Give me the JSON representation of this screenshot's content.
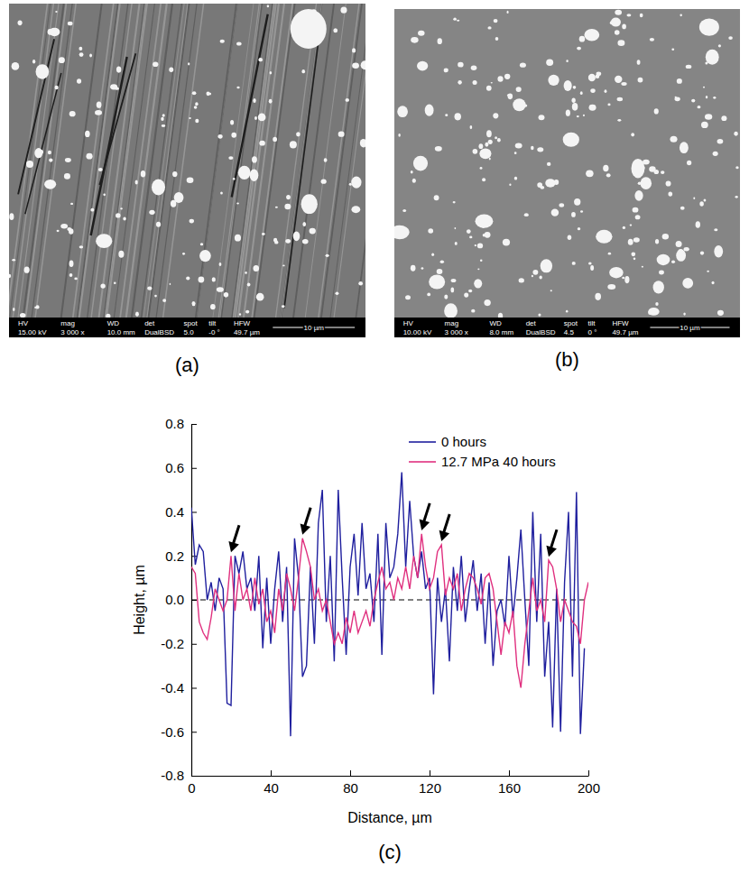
{
  "images": [
    {
      "label": "(a)",
      "info_headers": [
        "HV",
        "mag",
        "WD",
        "det",
        "spot",
        "tilt",
        "HFW"
      ],
      "info_values": [
        "15.00 kV",
        "3 000 x",
        "10.0 mm",
        "DualBSD",
        "5.0",
        "-0 °",
        "49.7 µm"
      ],
      "scale_bar": "10 µm"
    },
    {
      "label": "(b)",
      "info_headers": [
        "HV",
        "mag",
        "WD",
        "det",
        "spot",
        "tilt",
        "HFW"
      ],
      "info_values": [
        "10.00 kV",
        "3 000 x",
        "8.0 mm",
        "DualBSD",
        "4.5",
        "0 °",
        "49.7 µm"
      ],
      "scale_bar": "10 µm"
    }
  ],
  "chart_data": {
    "type": "line",
    "panel_label": "(c)",
    "x_label": "Distance, µm",
    "y_label": "Height, µm",
    "xlim": [
      0,
      200
    ],
    "xticks": [
      0,
      40,
      80,
      120,
      160,
      200
    ],
    "ylim": [
      -0.8,
      0.8
    ],
    "yticks": [
      -0.8,
      -0.6,
      -0.4,
      -0.2,
      {
        "value": 0,
        "label": "0.0"
      },
      0.2,
      0.4,
      0.6,
      0.8
    ],
    "legend": "upper right",
    "reference_line": {
      "y": 0,
      "line_style": "dashed"
    },
    "arrows": [
      {
        "x": 20,
        "y": 0.2
      },
      {
        "x": 56,
        "y": 0.28
      },
      {
        "x": 116,
        "y": 0.3
      },
      {
        "x": 126,
        "y": 0.25
      },
      {
        "x": 180,
        "y": 0.18
      }
    ],
    "series": [
      {
        "name": "0 hours",
        "color": "#1f1f9e",
        "x": [
          0,
          2,
          4,
          6,
          8,
          10,
          12,
          14,
          16,
          18,
          20,
          22,
          24,
          26,
          28,
          30,
          32,
          34,
          36,
          38,
          40,
          42,
          44,
          46,
          48,
          50,
          52,
          54,
          56,
          58,
          60,
          62,
          64,
          66,
          68,
          70,
          72,
          74,
          76,
          78,
          80,
          82,
          84,
          86,
          88,
          90,
          92,
          94,
          96,
          98,
          100,
          102,
          104,
          106,
          108,
          110,
          112,
          114,
          116,
          118,
          120,
          122,
          124,
          126,
          128,
          130,
          132,
          134,
          136,
          138,
          140,
          142,
          144,
          146,
          148,
          150,
          152,
          154,
          156,
          158,
          160,
          162,
          164,
          166,
          168,
          170,
          172,
          174,
          176,
          178,
          180,
          182,
          184,
          186,
          188,
          190,
          192,
          194,
          196,
          198
        ],
        "values": [
          0.42,
          0.16,
          0.25,
          0.22,
          0.0,
          0.08,
          -0.05,
          0.1,
          0.05,
          -0.47,
          -0.48,
          0.2,
          0.12,
          0.22,
          0.05,
          0.1,
          -0.05,
          0.2,
          -0.22,
          0.1,
          -0.2,
          0.05,
          0.22,
          -0.1,
          0.15,
          -0.62,
          0.28,
          0.1,
          -0.35,
          -0.3,
          0.15,
          -0.2,
          0.35,
          0.5,
          -0.1,
          0.2,
          -0.28,
          0.5,
          0.1,
          -0.25,
          0.15,
          0.3,
          0.02,
          0.35,
          0.05,
          0.12,
          -0.1,
          0.3,
          -0.25,
          0.35,
          0.1,
          0.15,
          0.3,
          0.58,
          0.15,
          0.45,
          0.2,
          0.1,
          0.22,
          0.05,
          0.1,
          -0.43,
          0.1,
          -0.1,
          0.05,
          -0.28,
          0.15,
          -0.05,
          0.2,
          -0.1,
          0.05,
          0.18,
          -0.05,
          0.12,
          -0.2,
          0.08,
          -0.3,
          -0.05,
          0.0,
          -0.12,
          0.2,
          -0.08,
          0.1,
          0.32,
          0.0,
          -0.3,
          0.4,
          -0.1,
          0.3,
          -0.35,
          -0.1,
          -0.58,
          0.05,
          -0.6,
          0.08,
          0.4,
          -0.35,
          0.49,
          -0.61,
          -0.22
        ]
      },
      {
        "name": "12.7 MPa 40 hours",
        "color": "#e0307f",
        "x": [
          0,
          2,
          4,
          6,
          8,
          10,
          12,
          14,
          16,
          18,
          20,
          22,
          24,
          26,
          28,
          30,
          32,
          34,
          36,
          38,
          40,
          42,
          44,
          46,
          48,
          50,
          52,
          54,
          56,
          58,
          60,
          62,
          64,
          66,
          68,
          70,
          72,
          74,
          76,
          78,
          80,
          82,
          84,
          86,
          88,
          90,
          92,
          94,
          96,
          98,
          100,
          102,
          104,
          106,
          108,
          110,
          112,
          114,
          116,
          118,
          120,
          122,
          124,
          126,
          128,
          130,
          132,
          134,
          136,
          138,
          140,
          142,
          144,
          146,
          148,
          150,
          152,
          154,
          156,
          158,
          160,
          162,
          164,
          166,
          168,
          170,
          172,
          174,
          176,
          178,
          180,
          182,
          184,
          186,
          188,
          190,
          192,
          194,
          196,
          198,
          200
        ],
        "values": [
          0.15,
          0.12,
          -0.1,
          -0.15,
          -0.18,
          -0.08,
          0.05,
          0.0,
          -0.05,
          0.0,
          0.2,
          -0.05,
          0.12,
          0.0,
          0.05,
          -0.05,
          0.1,
          -0.02,
          0.05,
          -0.1,
          -0.05,
          -0.15,
          0.05,
          -0.05,
          0.12,
          0.05,
          -0.05,
          0.1,
          0.28,
          0.22,
          0.15,
          0.0,
          0.05,
          -0.05,
          0.0,
          -0.1,
          -0.2,
          -0.15,
          -0.2,
          -0.08,
          -0.15,
          -0.05,
          -0.15,
          -0.1,
          -0.05,
          -0.12,
          0.0,
          0.08,
          0.15,
          0.05,
          0.08,
          0.0,
          0.1,
          0.05,
          0.15,
          0.05,
          0.2,
          0.1,
          0.3,
          0.15,
          0.05,
          0.1,
          0.22,
          0.25,
          0.02,
          0.1,
          0.05,
          0.12,
          -0.05,
          0.05,
          0.12,
          0.1,
          0.05,
          -0.02,
          0.1,
          0.12,
          0.05,
          -0.1,
          -0.25,
          -0.1,
          -0.15,
          -0.05,
          -0.3,
          -0.4,
          -0.2,
          -0.05,
          0.1,
          -0.05,
          0.0,
          -0.1,
          0.18,
          0.15,
          0.05,
          -0.1,
          0.0,
          -0.05,
          -0.1,
          -0.12,
          -0.2,
          0.0,
          0.08
        ]
      }
    ]
  }
}
